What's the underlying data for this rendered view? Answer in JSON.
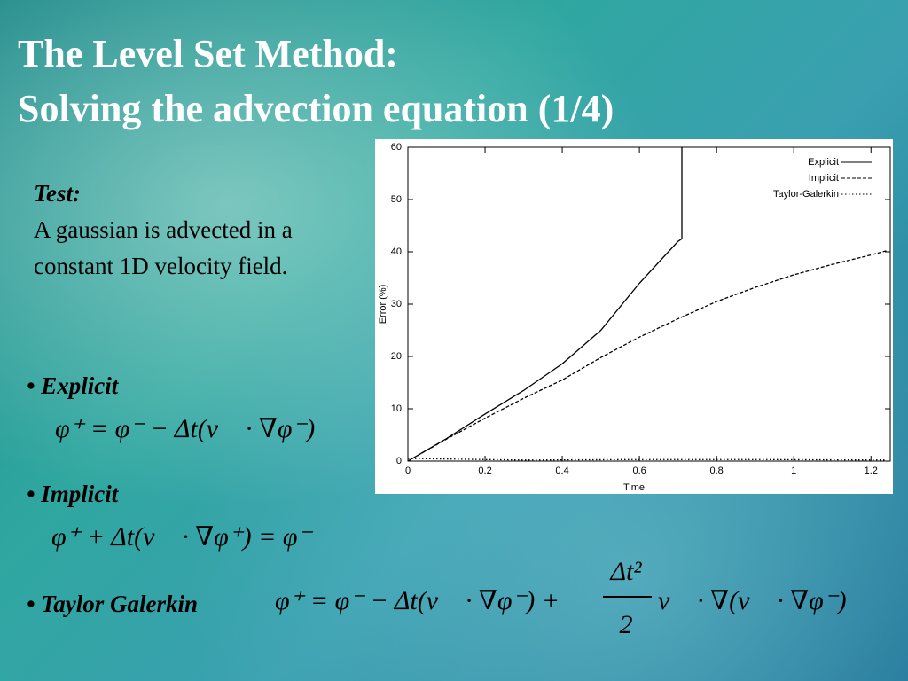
{
  "slide": {
    "title": [
      "The Level Set Method:",
      "Solving the advection equation (1/4)"
    ],
    "test_label": "Test:",
    "test_text": "A gaussian is advected in a constant 1D velocity field.",
    "bullets": [
      {
        "label": "Explicit",
        "equation": "φ⁺ = φ⁻ − Δt(v⃗ · ∇φ⁻)"
      },
      {
        "label": "Implicit",
        "equation": "φ⁺ + Δt(v⃗ · ∇φ⁺) = φ⁻"
      },
      {
        "label": "Taylor Galerkin",
        "equation": "φ⁺ = φ⁻ − Δt(v⃗ · ∇φ⁻) +",
        "fraction_numerator": "Δt²",
        "fraction_denominator": "2",
        "equation_tail": "v⃗ · ∇(v⃗ · ∇φ⁻)"
      }
    ]
  },
  "chart_data": {
    "type": "line",
    "x_label": "Time",
    "y_label": "Error (%)",
    "xlim": [
      0,
      1.25
    ],
    "xticks": [
      0,
      0.2,
      0.4,
      0.6,
      0.8,
      1,
      1.2
    ],
    "ylim": [
      0,
      60
    ],
    "yticks": [
      0,
      10,
      20,
      30,
      40,
      50,
      60
    ],
    "legend": "top-right",
    "series": [
      {
        "name": "Explicit",
        "color": "#000000",
        "style": "solid",
        "x": [
          0,
          0.1,
          0.2,
          0.3,
          0.4,
          0.5,
          0.6,
          0.7,
          0.71,
          0.71
        ],
        "values": [
          0,
          4.3,
          9,
          13.5,
          18.6,
          25,
          34,
          42,
          42.5,
          60
        ]
      },
      {
        "name": "Implicit",
        "color": "#000000",
        "style": "dashed",
        "x": [
          0,
          0.1,
          0.2,
          0.3,
          0.4,
          0.5,
          0.6,
          0.7,
          0.8,
          0.9,
          1,
          1.1,
          1.2,
          1.24
        ],
        "values": [
          0,
          4.2,
          8.2,
          12,
          15.5,
          19.8,
          23.7,
          27.2,
          30.5,
          33.2,
          35.6,
          37.6,
          39.4,
          40.2
        ]
      },
      {
        "name": "Taylor-Galerkin",
        "color": "#000000",
        "style": "dotted",
        "x": [
          0,
          0.3,
          0.6,
          0.9,
          1.24
        ],
        "values": [
          0.5,
          0.2,
          0.3,
          0.3,
          0.2
        ]
      }
    ]
  }
}
